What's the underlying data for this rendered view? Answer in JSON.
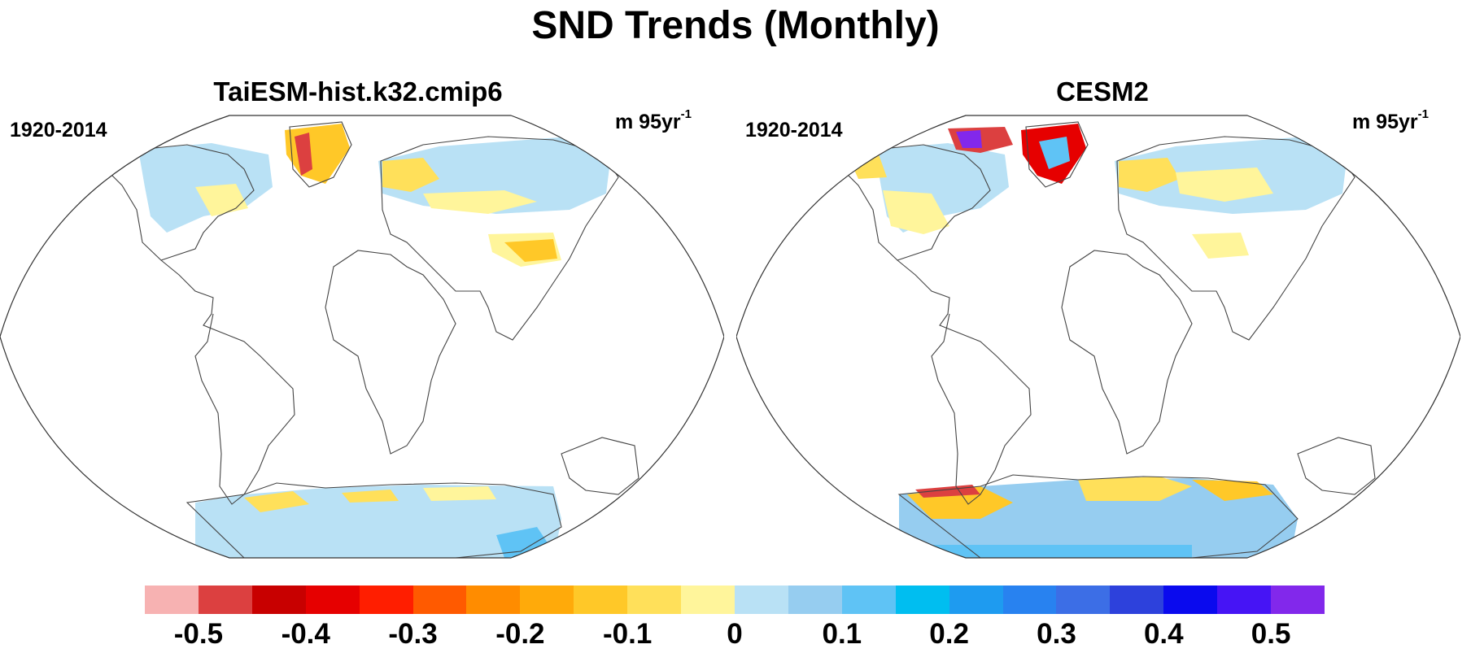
{
  "title": "SND Trends (Monthly)",
  "panels": [
    {
      "title": "TaiESM-hist.k32.cmip6",
      "period": "1920-2014",
      "units_base": "m 95yr",
      "units_exp": "-1"
    },
    {
      "title": "CESM2",
      "period": "1920-2014",
      "units_base": "m 95yr",
      "units_exp": "-1"
    }
  ],
  "colorbar": {
    "labels": [
      "-0.5",
      "-0.4",
      "-0.3",
      "-0.2",
      "-0.1",
      "0",
      "0.1",
      "0.2",
      "0.3",
      "0.4",
      "0.5"
    ],
    "colors": [
      "#f7b2b2",
      "#dc4040",
      "#c80000",
      "#e60000",
      "#ff1e00",
      "#ff5a00",
      "#ff8c00",
      "#ffaa0a",
      "#ffc828",
      "#ffe05a",
      "#fff59b",
      "#b9e1f5",
      "#96cdf0",
      "#5fc3f5",
      "#00bef0",
      "#1e9bf0",
      "#2882f0",
      "#3c6ee6",
      "#2d41dc",
      "#0a0aee",
      "#4614f5",
      "#8228eb"
    ]
  }
}
